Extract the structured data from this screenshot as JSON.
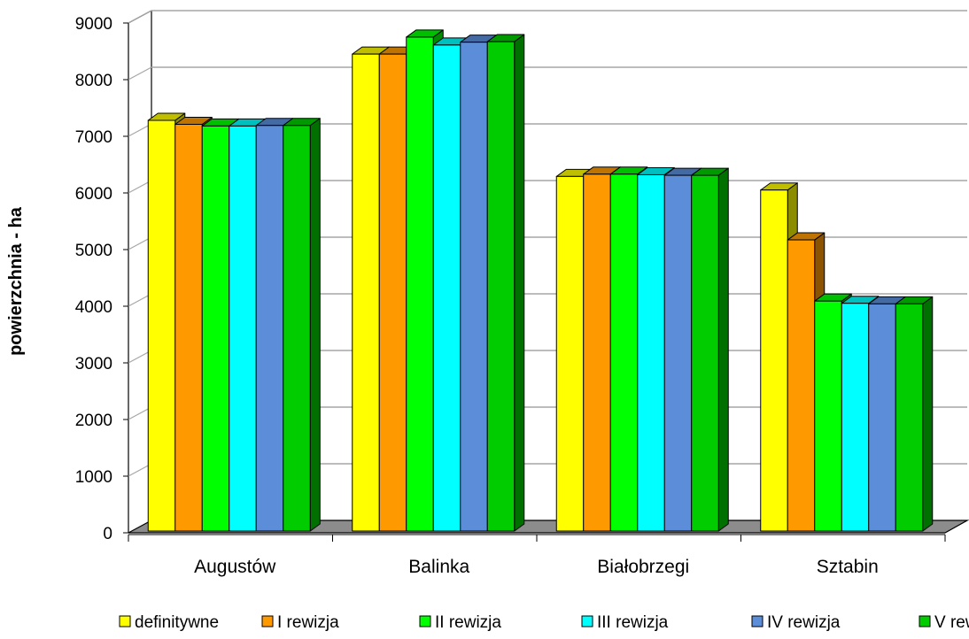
{
  "chart_data": {
    "type": "bar",
    "title": "",
    "xlabel": "",
    "ylabel": "powierzchnia - ha",
    "ylim": [
      0,
      9000
    ],
    "yticks": [
      "0",
      "1000",
      "2000",
      "3000",
      "4000",
      "5000",
      "6000",
      "7000",
      "8000",
      "9000"
    ],
    "grid": true,
    "legend_position": "bottom",
    "categories": [
      "Augustów",
      "Balinka",
      "Białobrzegi",
      "Sztabin"
    ],
    "series": [
      {
        "name": "definitywne",
        "color": "#FFFF00",
        "values": [
          7250,
          8420,
          6260,
          6020
        ]
      },
      {
        "name": "I rewizja",
        "color": "#FF9900",
        "values": [
          7180,
          8420,
          6300,
          5140
        ]
      },
      {
        "name": "II rewizja",
        "color": "#00FF00",
        "values": [
          7150,
          8720,
          6300,
          4060
        ]
      },
      {
        "name": "III rewizja",
        "color": "#00FFFF",
        "values": [
          7150,
          8580,
          6290,
          4020
        ]
      },
      {
        "name": "IV rewizja",
        "color": "#5B8DD9",
        "values": [
          7160,
          8630,
          6280,
          4010
        ]
      },
      {
        "name": "V rewizja",
        "color": "#00CC00",
        "values": [
          7160,
          8640,
          6280,
          4010
        ]
      }
    ]
  }
}
